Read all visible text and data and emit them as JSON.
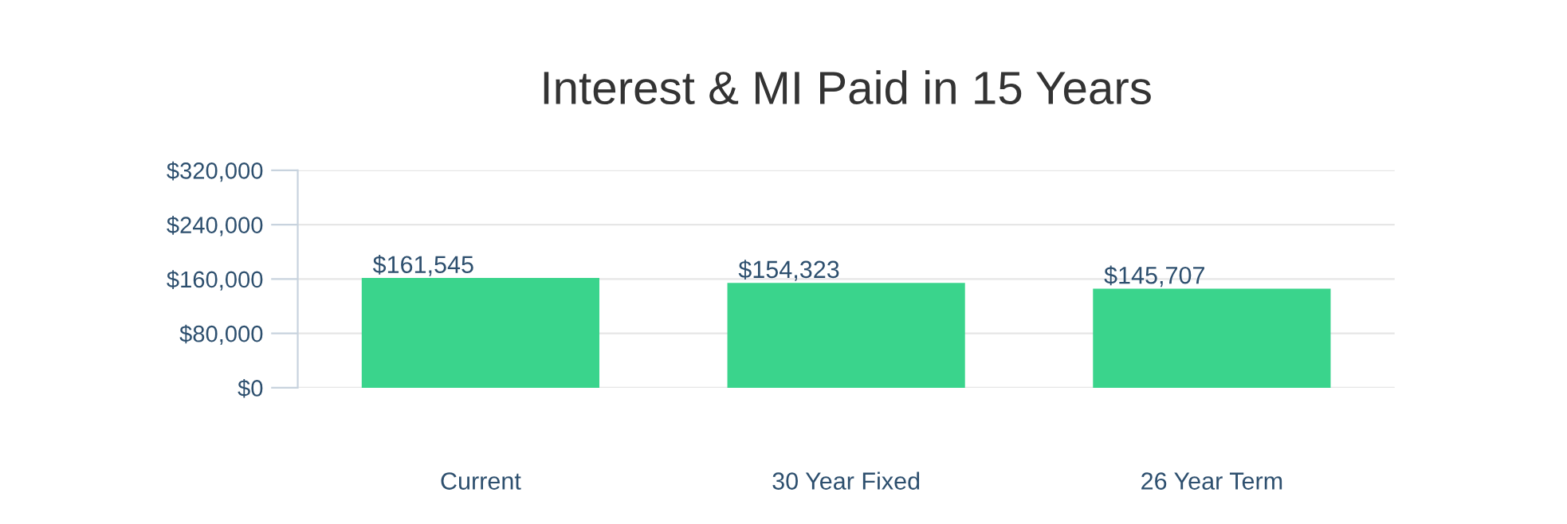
{
  "chart_data": {
    "type": "bar",
    "title": "Interest & MI Paid in 15 Years",
    "categories": [
      "Current",
      "30 Year Fixed",
      "26 Year Term"
    ],
    "values": [
      161545,
      154323,
      145707
    ],
    "value_labels": [
      "$161,545",
      "$154,323",
      "$145,707"
    ],
    "color": "#3ad48c",
    "ylim": [
      0,
      320000
    ],
    "yticks": [
      {
        "value": 0,
        "label": "$0"
      },
      {
        "value": 80000,
        "label": "$80,000"
      },
      {
        "value": 160000,
        "label": "$160,000"
      },
      {
        "value": 240000,
        "label": "$240,000"
      },
      {
        "value": 320000,
        "label": "$320,000"
      }
    ],
    "grid": "y",
    "legend": false
  }
}
